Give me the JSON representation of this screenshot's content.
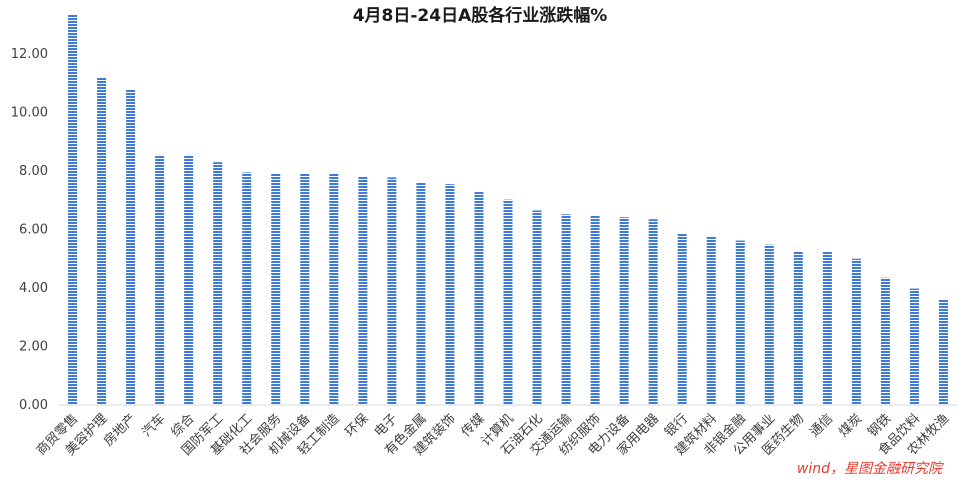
{
  "chart_data": {
    "type": "bar",
    "title": "4月8日-24日A股各行业涨跌幅%",
    "xlabel": "",
    "ylabel": "",
    "ylim": [
      0,
      13.4
    ],
    "yticks": [
      "0.00",
      "2.00",
      "4.00",
      "6.00",
      "8.00",
      "10.00",
      "12.00"
    ],
    "ytick_values": [
      0,
      2,
      4,
      6,
      8,
      10,
      12
    ],
    "grid": false,
    "legend": "none",
    "bar_color": "#3e7ad8",
    "bar_style": "horizontal-striped",
    "categories": [
      "商贸零售",
      "美容护理",
      "房地产",
      "汽车",
      "综合",
      "国防军工",
      "基础化工",
      "社会服务",
      "机械设备",
      "轻工制造",
      "环保",
      "电子",
      "有色金属",
      "建筑装饰",
      "传媒",
      "计算机",
      "石油石化",
      "交通运输",
      "纺织服饰",
      "电力设备",
      "家用电器",
      "银行",
      "建筑材料",
      "非银金融",
      "公用事业",
      "医药生物",
      "通信",
      "煤炭",
      "钢铁",
      "食品饮料",
      "农林牧渔"
    ],
    "values": [
      13.35,
      11.2,
      10.8,
      8.55,
      8.55,
      8.3,
      7.95,
      7.92,
      7.92,
      7.92,
      7.8,
      7.78,
      7.62,
      7.55,
      7.28,
      7.02,
      6.65,
      6.52,
      6.48,
      6.42,
      6.35,
      5.88,
      5.75,
      5.62,
      5.48,
      5.25,
      5.25,
      5.0,
      4.35,
      3.98,
      3.6
    ],
    "watermark": "wind，星图金融研究院"
  }
}
